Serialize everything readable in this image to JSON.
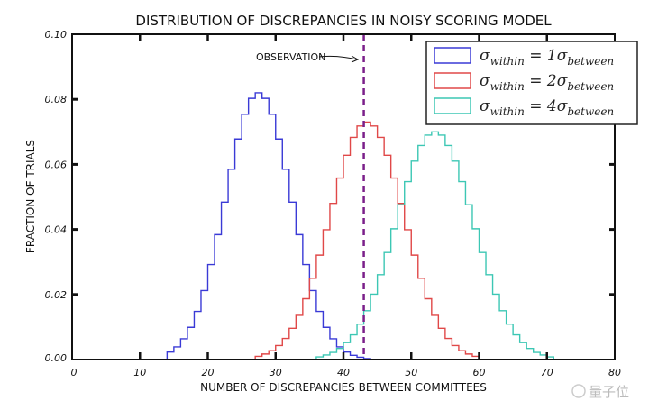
{
  "chart_data": {
    "type": "histogram-step",
    "title": "DISTRIBUTION OF DISCREPANCIES IN NOISY SCORING MODEL",
    "xlabel": "NUMBER OF DISCREPANCIES BETWEEN COMMITTEES",
    "ylabel": "FRACTION OF TRIALS",
    "xlim": [
      0,
      80
    ],
    "ylim": [
      0,
      0.1
    ],
    "xticks": [
      "0",
      "10",
      "20",
      "30",
      "40",
      "50",
      "60",
      "70",
      "80"
    ],
    "yticks": [
      "0.00",
      "0.02",
      "0.04",
      "0.06",
      "0.08",
      "0.10"
    ],
    "legend_position": "top-right",
    "annotation": {
      "text": "OBSERVATION",
      "x": 43
    },
    "observation_color": "#7b1f8a",
    "series": [
      {
        "sub1": "within",
        "coef": "1",
        "sub2": "between",
        "color": "#3a3ad6",
        "start": 14,
        "values": [
          0.0023,
          0.0039,
          0.0064,
          0.0099,
          0.0148,
          0.0212,
          0.0292,
          0.0384,
          0.0484,
          0.0585,
          0.0678,
          0.0754,
          0.0803,
          0.082,
          0.0803,
          0.0754,
          0.0678,
          0.0585,
          0.0484,
          0.0384,
          0.0292,
          0.0212,
          0.0148,
          0.0099,
          0.0064,
          0.0039,
          0.0023,
          0.0013,
          0.0007,
          0.0003
        ]
      },
      {
        "sub1": "within",
        "coef": "2",
        "sub2": "between",
        "color": "#e04848",
        "start": 27,
        "values": [
          0.001,
          0.0017,
          0.0027,
          0.0043,
          0.0065,
          0.0096,
          0.0136,
          0.0187,
          0.025,
          0.0321,
          0.0399,
          0.048,
          0.0558,
          0.0628,
          0.0683,
          0.0718,
          0.073,
          0.0718,
          0.0683,
          0.0628,
          0.0558,
          0.048,
          0.0399,
          0.0321,
          0.025,
          0.0187,
          0.0136,
          0.0096,
          0.0065,
          0.0043,
          0.0027,
          0.0017,
          0.001
        ]
      },
      {
        "sub1": "within",
        "coef": "4",
        "sub2": "between",
        "color": "#3cc7b4",
        "start": 36,
        "values": [
          0.0008,
          0.0014,
          0.0022,
          0.0034,
          0.0052,
          0.0076,
          0.0109,
          0.015,
          0.0201,
          0.0261,
          0.0329,
          0.0402,
          0.0476,
          0.0547,
          0.061,
          0.0658,
          0.069,
          0.07,
          0.069,
          0.0658,
          0.061,
          0.0547,
          0.0476,
          0.0402,
          0.0329,
          0.0261,
          0.0201,
          0.015,
          0.0109,
          0.0076,
          0.0052,
          0.0034,
          0.0022,
          0.0014,
          0.0008
        ]
      }
    ]
  },
  "watermark": {
    "text": "量子位"
  }
}
